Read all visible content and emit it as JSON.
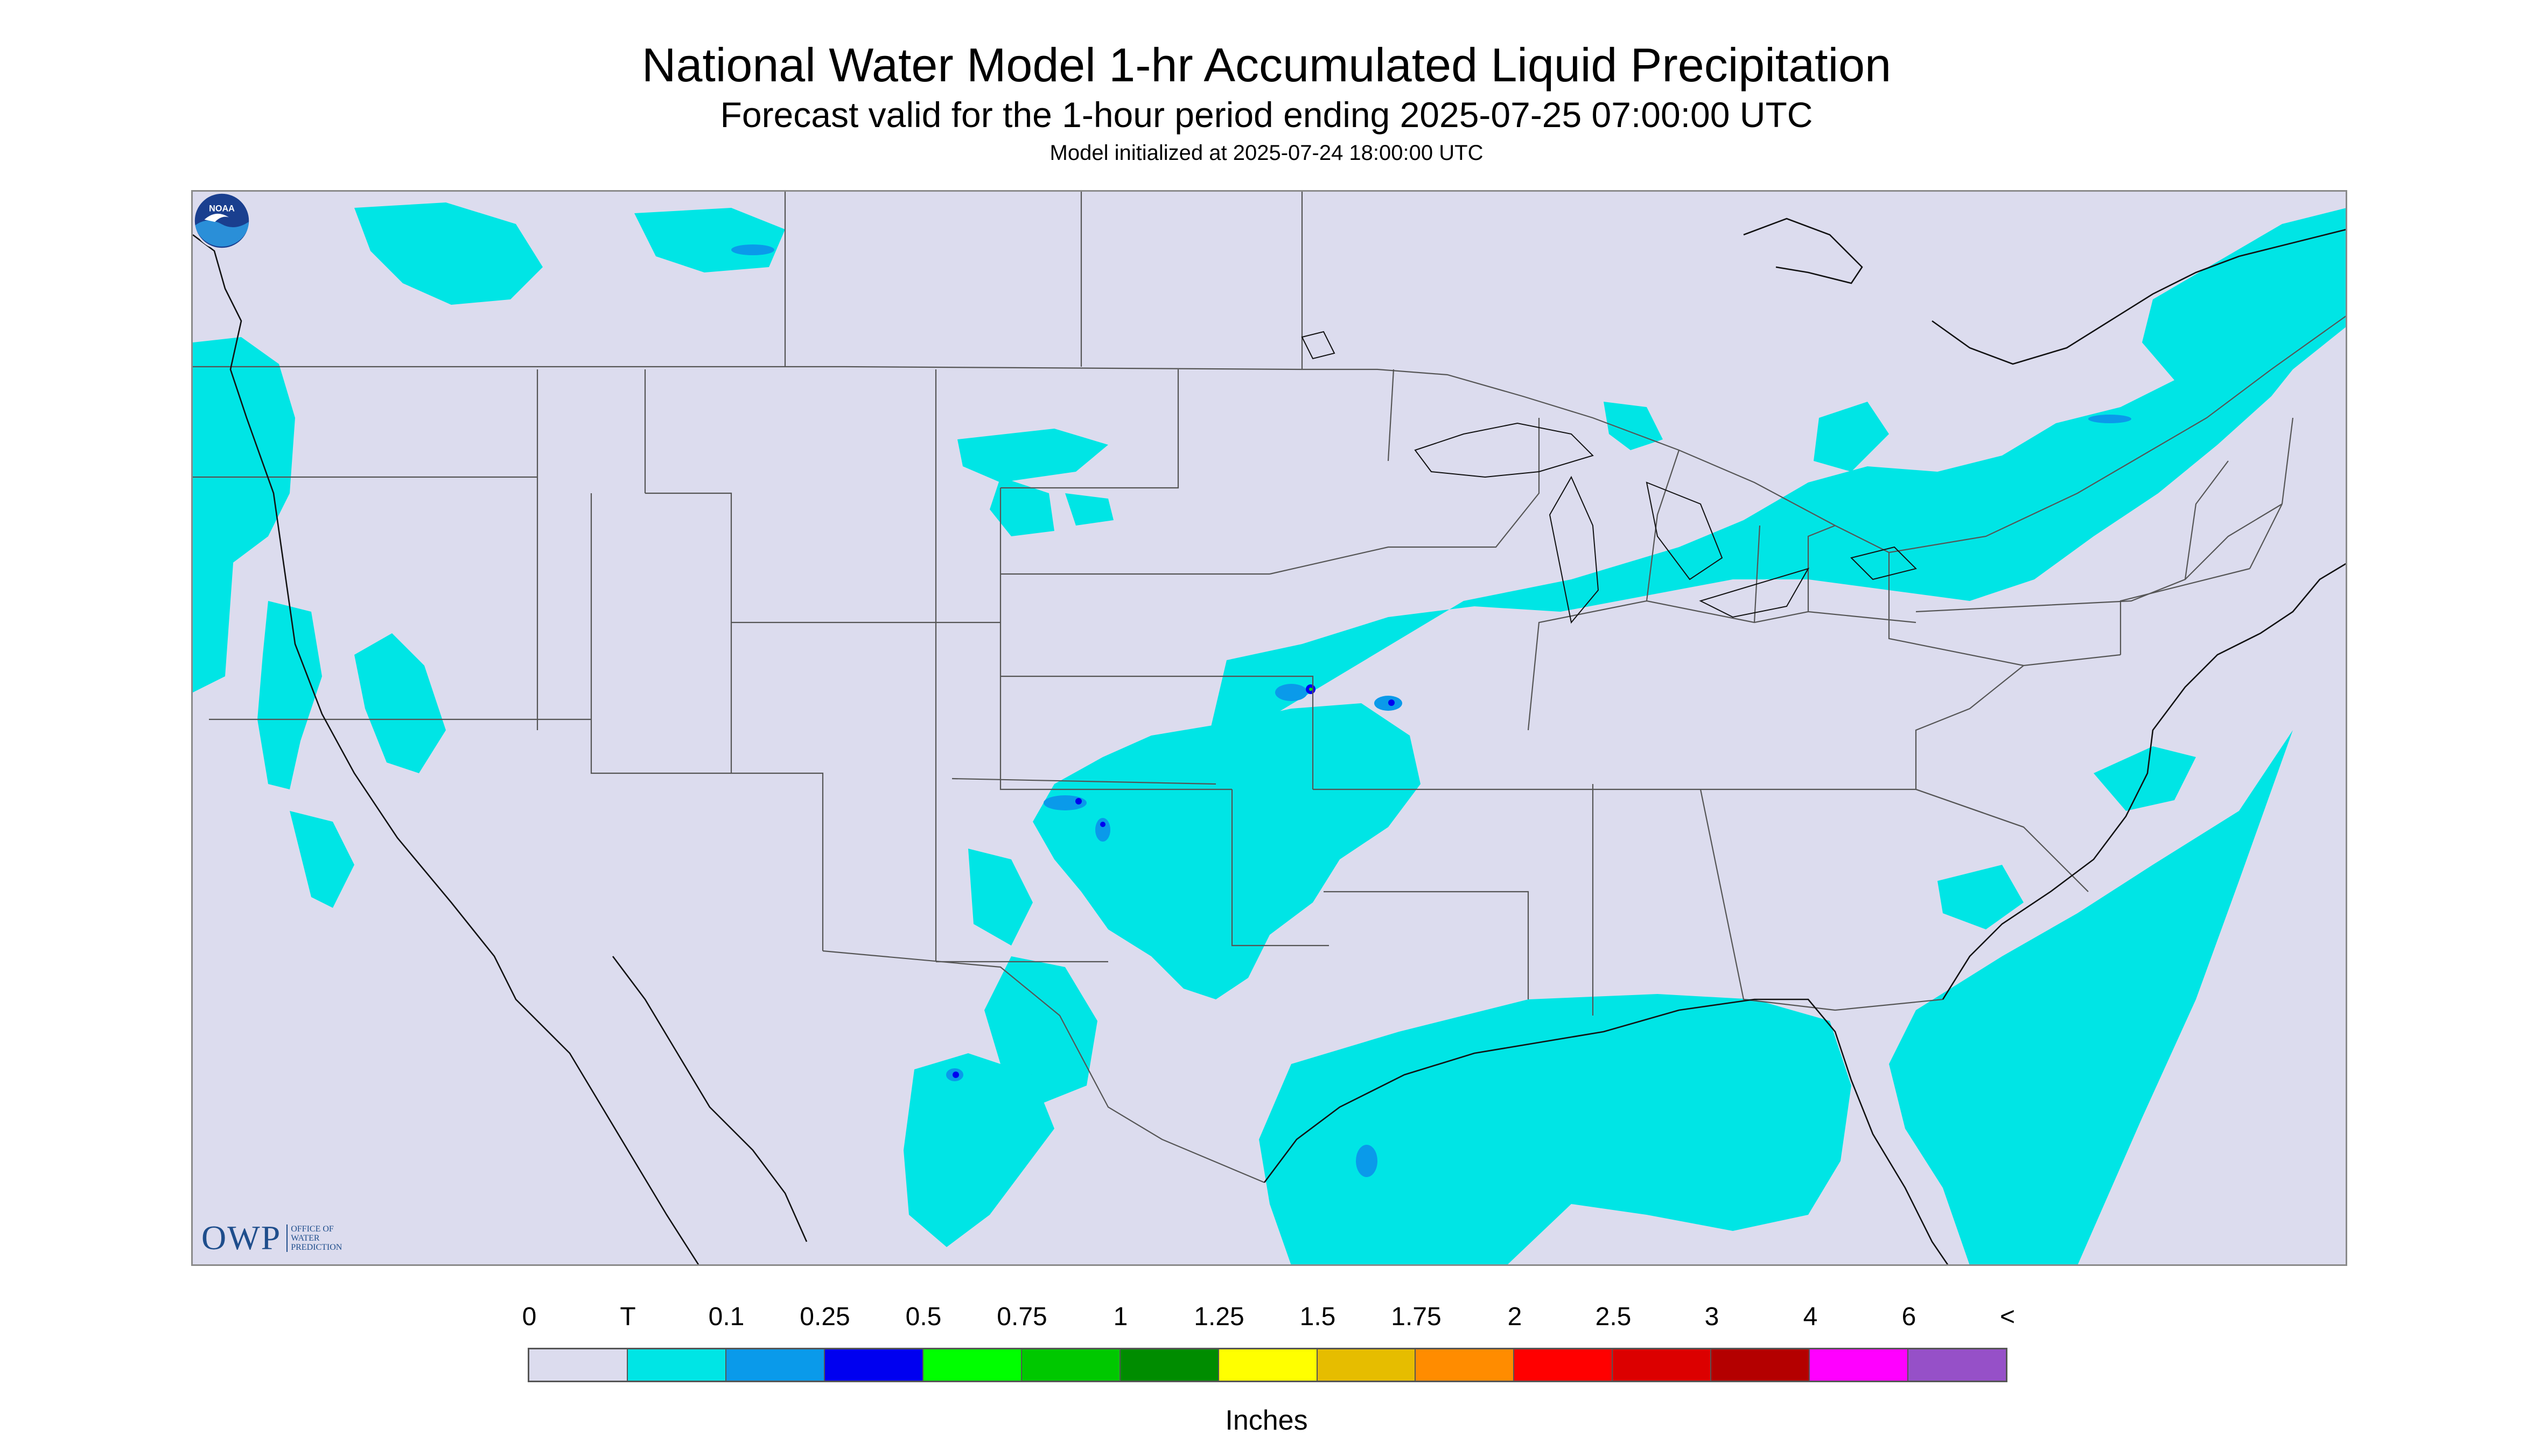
{
  "header": {
    "title": "National Water Model 1-hr Accumulated Liquid Precipitation",
    "subtitle": "Forecast valid for the 1-hour period ending 2025-07-25 07:00:00 UTC",
    "init": "Model initialized at 2025-07-24 18:00:00 UTC"
  },
  "map": {
    "background_color": "#dcdcee",
    "outside_color": "#ffffff",
    "precip_colors": {
      "trace": "#00e5e5",
      "light": "#0a9aea",
      "moderate": "#0000f0"
    }
  },
  "logos": {
    "owp": {
      "name": "OWP",
      "sub": [
        "OFFICE OF",
        "WATER",
        "PREDICTION"
      ],
      "color": "#1f4e8c"
    },
    "noaa": {
      "icon": "noaa-logo-icon",
      "text": "NOAA"
    }
  },
  "legend": {
    "labels": [
      "0",
      "T",
      "0.1",
      "0.25",
      "0.5",
      "0.75",
      "1",
      "1.25",
      "1.5",
      "1.75",
      "2",
      "2.5",
      "3",
      "4",
      "6",
      "<"
    ],
    "colors": [
      "#dcdcee",
      "#00e5e5",
      "#0a9aea",
      "#0000f0",
      "#00ff00",
      "#00c800",
      "#008c00",
      "#ffff00",
      "#e6bd00",
      "#ff8c00",
      "#ff0000",
      "#dc0000",
      "#b40000",
      "#ff00ff",
      "#9650c8"
    ],
    "units": "Inches"
  }
}
